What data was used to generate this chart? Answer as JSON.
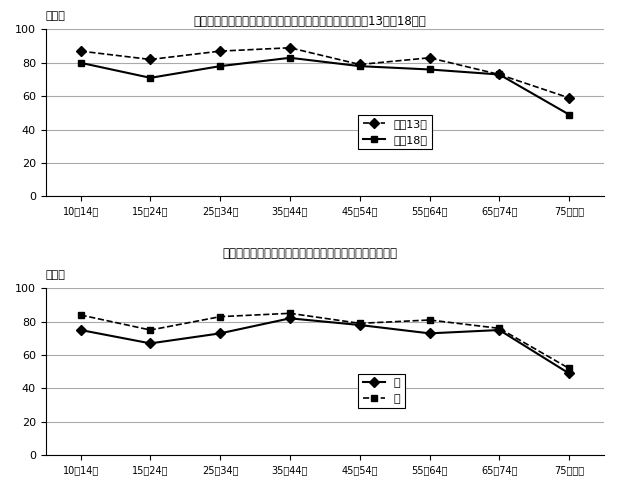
{
  "title1": "図６－１　年齢階級別「旅行・行楽」の行動者率（平成13年，18年）",
  "title2": "図６－２　男女，年齢階級別「旅行・行楽」の行動者率",
  "categories": [
    "10－14歳",
    "15－24歳",
    "25－34歳",
    "35－44歳",
    "45－54歳",
    "55－64歳",
    "65－74歳",
    "75歳以上"
  ],
  "chart1": {
    "series1_label": "平成13年",
    "series1_values": [
      87,
      82,
      87,
      89,
      79,
      83,
      73,
      59
    ],
    "series2_label": "平成18年",
    "series2_values": [
      80,
      71,
      78,
      83,
      78,
      76,
      73,
      49
    ]
  },
  "chart2": {
    "series1_label": "男",
    "series1_values": [
      75,
      67,
      73,
      82,
      78,
      73,
      75,
      49
    ],
    "series2_label": "女",
    "series2_values": [
      84,
      75,
      83,
      85,
      79,
      81,
      76,
      52
    ]
  },
  "ylabel": "（％）",
  "ylim": [
    0,
    100
  ],
  "yticks": [
    0,
    20,
    40,
    60,
    80,
    100
  ],
  "grid_color": "#aaaaaa",
  "line_color": "#000000",
  "bg_color": "#ffffff"
}
